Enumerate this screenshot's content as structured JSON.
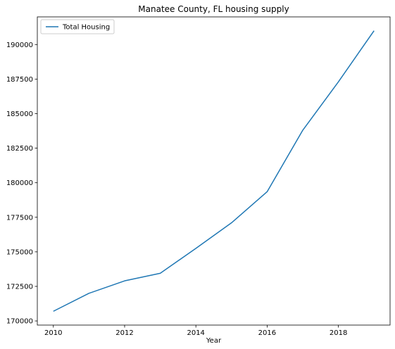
{
  "chart_data": {
    "type": "line",
    "title": "Manatee County, FL housing supply",
    "xlabel": "Year",
    "ylabel": "",
    "x": [
      2010,
      2011,
      2012,
      2013,
      2014,
      2015,
      2016,
      2017,
      2018,
      2019
    ],
    "series": [
      {
        "name": "Total Housing",
        "color": "#1f77b4",
        "values": [
          170700,
          172000,
          172900,
          173450,
          175250,
          177100,
          179350,
          183800,
          187300,
          191000
        ]
      }
    ],
    "x_ticks": [
      2010,
      2012,
      2014,
      2016,
      2018
    ],
    "y_ticks": [
      170000,
      172500,
      175000,
      177500,
      180000,
      182500,
      185000,
      187500,
      190000
    ],
    "xlim": [
      2009.55,
      2019.45
    ],
    "ylim": [
      169700,
      192000
    ],
    "legend": "top-left",
    "grid": false
  }
}
